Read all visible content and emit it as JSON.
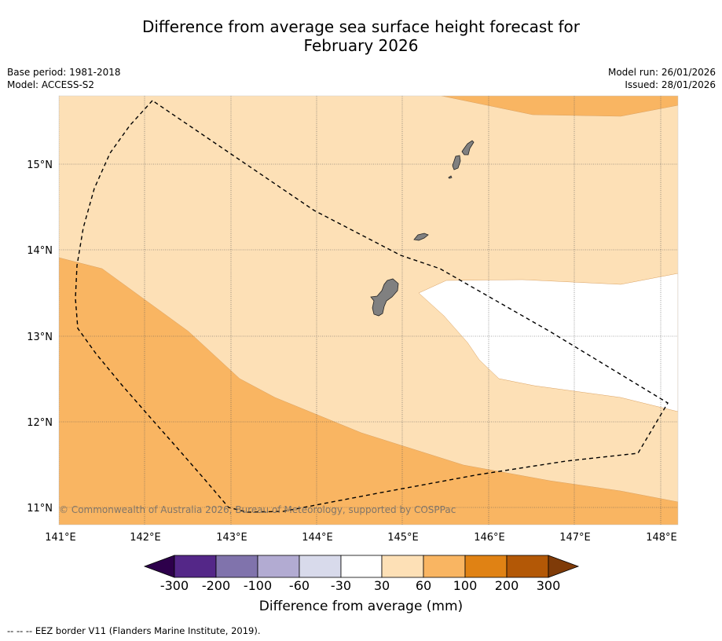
{
  "title": {
    "line1": "Difference from average sea surface height forecast for",
    "line2": "February 2026"
  },
  "meta_left": {
    "base_period": "Base period: 1981-2018",
    "model": "Model: ACCESS-S2"
  },
  "meta_right": {
    "model_run": "Model run: 26/01/2026",
    "issued": "Issued: 28/01/2026"
  },
  "map": {
    "lon_labels": [
      "141°E",
      "142°E",
      "143°E",
      "144°E",
      "145°E",
      "146°E",
      "147°E",
      "148°E"
    ],
    "lat_labels": [
      "15°N",
      "14°N",
      "13°N",
      "12°N",
      "11°N"
    ],
    "copyright": "© Commonwealth of Australia 2026, Bureau of Meteorology, supported by COSPPac",
    "colors": {
      "class_30_60": "#fde0b6",
      "class_60_100": "#f9b562",
      "class_neutral": "#ffffff",
      "land": "#808080",
      "grid": "#555555"
    }
  },
  "colorbar": {
    "tick_labels": [
      "-300",
      "-200",
      "-100",
      "-60",
      "-30",
      "30",
      "60",
      "100",
      "200",
      "300"
    ],
    "colors": [
      "#2d004b",
      "#542788",
      "#8073ac",
      "#b2abd2",
      "#d8daeb",
      "#ffffff",
      "#fde0b6",
      "#f9b562",
      "#e08214",
      "#b35806",
      "#7f3b08"
    ],
    "title": "Difference from average (mm)"
  },
  "footnote": "--  --  -- EEZ border V11 (Flanders Marine Institute, 2019)."
}
